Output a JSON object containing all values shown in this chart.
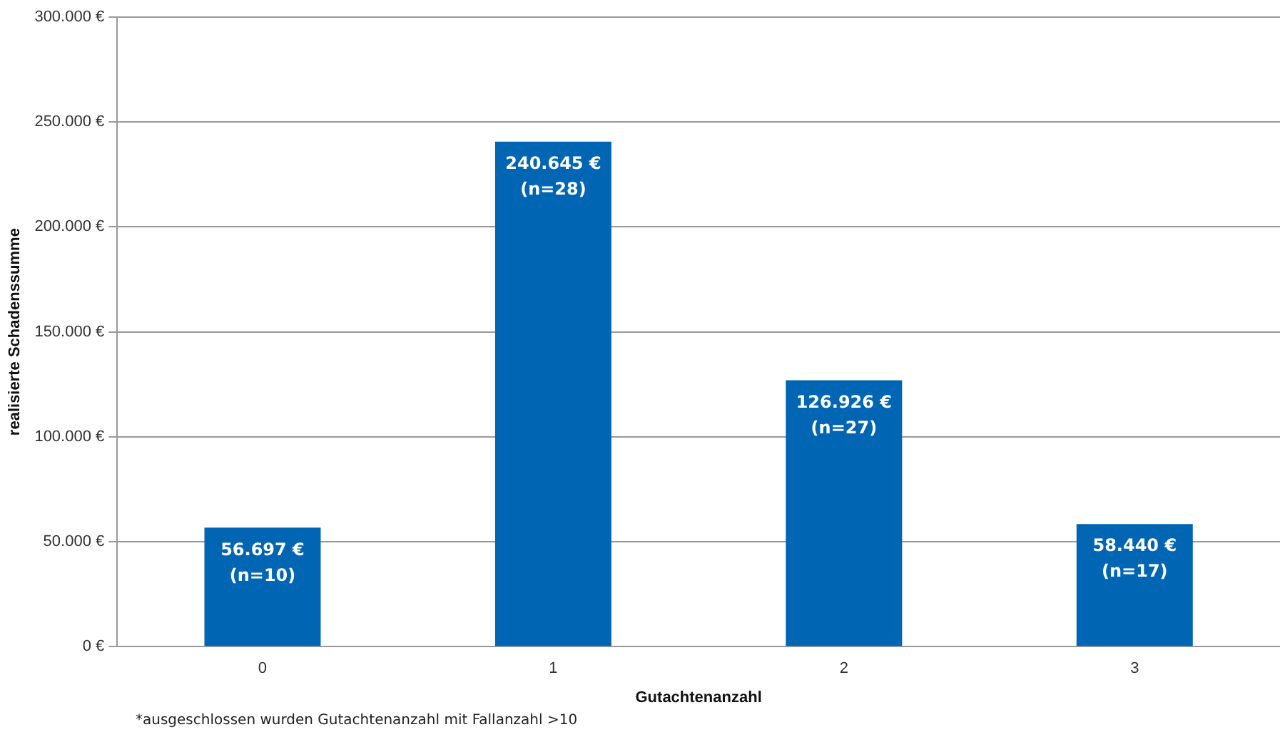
{
  "chart_data": {
    "type": "bar",
    "xlabel": "Gutachtenanzahl",
    "ylabel": "realisierte Schadenssumme",
    "categories": [
      "0",
      "1",
      "2",
      "3"
    ],
    "values": [
      56697,
      240645,
      126926,
      58440
    ],
    "value_labels": [
      "56.697 €\n(n=10)",
      "240.645 €\n(n=28)",
      "126.926 €\n(n=27)",
      "58.440 €\n(n=17)"
    ],
    "color": "#0066b3",
    "ylim": [
      0,
      300000
    ],
    "yticks": [
      {
        "value": 0,
        "label": "0 €"
      },
      {
        "value": 50000,
        "label": "50.000 €"
      },
      {
        "value": 100000,
        "label": "100.000 €"
      },
      {
        "value": 150000,
        "label": "150.000 €"
      },
      {
        "value": 200000,
        "label": "200.000 €"
      },
      {
        "value": 250000,
        "label": "250.000 €"
      },
      {
        "value": 300000,
        "label": "300.000 €"
      }
    ],
    "grid": "y",
    "legend": false,
    "annotations": [
      "*ausgeschlossen wurden Gutachtenanzahl mit Fallanzahl >10"
    ]
  }
}
